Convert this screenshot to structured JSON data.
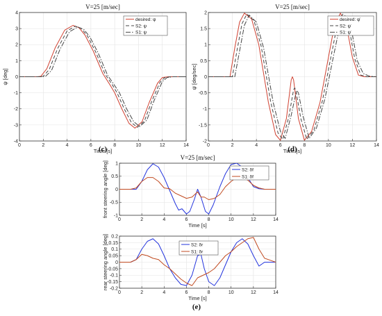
{
  "chart_data": [
    {
      "id": "c",
      "type": "line",
      "title": "V=25 [m/sec]",
      "xlabel": "Time [s]",
      "ylabel": "ψ [deg]",
      "caption": "(c)",
      "xlim": [
        0,
        14
      ],
      "ylim": [
        -4,
        4
      ],
      "xticks": [
        0,
        2,
        4,
        6,
        8,
        10,
        12,
        14
      ],
      "yticks": [
        -4,
        -3,
        -2,
        -1,
        0,
        1,
        2,
        3,
        4
      ],
      "grid": true,
      "legend_position": "top-right",
      "series": [
        {
          "name": "desired: ψ",
          "color": "#d04030",
          "dash": "",
          "x": [
            0,
            1.5,
            1.8,
            2.3,
            3,
            3.8,
            4.5,
            5,
            5.5,
            6.2,
            7,
            7.6,
            8,
            8.6,
            9.2,
            9.7,
            10.3,
            10.9,
            11.6,
            12,
            12.5,
            13,
            14
          ],
          "y": [
            0,
            0,
            0.03,
            0.5,
            1.8,
            2.9,
            3.2,
            3.05,
            2.6,
            1.6,
            0.2,
            -0.5,
            -1.0,
            -2.0,
            -2.9,
            -3.2,
            -2.8,
            -1.6,
            -0.4,
            -0.05,
            0,
            0,
            0
          ]
        },
        {
          "name": "S2: ψ",
          "color": "#444444",
          "dash": "5,3",
          "x": [
            0,
            1.7,
            2,
            2.5,
            3.2,
            4,
            4.7,
            5.2,
            5.7,
            6.4,
            7.2,
            7.8,
            8.2,
            8.8,
            9.4,
            9.9,
            10.5,
            11.1,
            11.8,
            12.2,
            12.7,
            13.2,
            14
          ],
          "y": [
            0,
            0,
            0.03,
            0.45,
            1.75,
            2.85,
            3.15,
            3.0,
            2.55,
            1.55,
            0.15,
            -0.5,
            -1.0,
            -2.0,
            -2.85,
            -3.15,
            -2.75,
            -1.55,
            -0.35,
            -0.05,
            0,
            0,
            0
          ]
        },
        {
          "name": "S1: ψ",
          "color": "#444444",
          "dash": "7,2,1.5,2",
          "x": [
            0,
            1.9,
            2.2,
            2.7,
            3.4,
            4.2,
            4.9,
            5.4,
            5.9,
            6.6,
            7.4,
            8,
            8.4,
            9,
            9.6,
            10.1,
            10.7,
            11.3,
            12,
            12.4,
            12.9,
            13.4,
            14
          ],
          "y": [
            0,
            0,
            0.03,
            0.4,
            1.7,
            2.8,
            3.1,
            2.95,
            2.5,
            1.5,
            0.1,
            -0.55,
            -1.0,
            -2.0,
            -2.8,
            -3.1,
            -2.7,
            -1.5,
            -0.3,
            -0.05,
            0,
            0,
            0
          ]
        }
      ]
    },
    {
      "id": "d",
      "type": "line",
      "title": "V=25 [m/sec]",
      "xlabel": "Time [s]",
      "ylabel": "ψ̇ [deg/sec]",
      "caption": "(d)",
      "xlim": [
        0,
        14
      ],
      "ylim": [
        -2,
        2
      ],
      "xticks": [
        0,
        2,
        4,
        6,
        8,
        10,
        12,
        14
      ],
      "yticks": [
        -2,
        -1.5,
        -1,
        -0.5,
        0,
        0.5,
        1,
        1.5,
        2
      ],
      "grid": true,
      "legend_position": "top-right",
      "series": [
        {
          "name": "desired: ψ̇",
          "color": "#d04030",
          "dash": "",
          "x": [
            0,
            1.8,
            2.2,
            2.6,
            3,
            3.6,
            4.2,
            5,
            5.6,
            6,
            6.5,
            6.9,
            7,
            7.1,
            7.5,
            8,
            8.6,
            9.3,
            10,
            10.5,
            11,
            11.5,
            12,
            12.5,
            13,
            14
          ],
          "y": [
            0,
            0,
            0.9,
            1.7,
            1.98,
            1.8,
            1.0,
            -0.8,
            -1.8,
            -1.98,
            -1.3,
            -0.1,
            0.0,
            -0.1,
            -1.3,
            -1.98,
            -1.7,
            -0.8,
            0.6,
            1.6,
            1.98,
            1.6,
            0.6,
            0.05,
            0,
            0
          ]
        },
        {
          "name": "S2: ψ̇",
          "color": "#444444",
          "dash": "5,3",
          "x": [
            0,
            2,
            2.4,
            2.8,
            3.2,
            3.8,
            4.4,
            5.2,
            5.8,
            6.2,
            6.7,
            7.1,
            7.2,
            7.3,
            7.7,
            8.2,
            8.8,
            9.5,
            10.2,
            10.7,
            11.2,
            11.7,
            12.2,
            12.7,
            13.2,
            14
          ],
          "y": [
            0,
            0,
            0.85,
            1.65,
            1.95,
            1.75,
            0.95,
            -0.8,
            -1.75,
            -1.95,
            -1.25,
            -0.4,
            -0.35,
            -0.45,
            -1.3,
            -1.95,
            -1.65,
            -0.75,
            0.6,
            1.55,
            1.95,
            1.55,
            0.55,
            0.05,
            0,
            0
          ]
        },
        {
          "name": "S1: ψ̇",
          "color": "#444444",
          "dash": "7,2,1.5,2",
          "x": [
            0,
            2.2,
            2.6,
            3,
            3.4,
            4,
            4.6,
            5.4,
            6,
            6.4,
            6.9,
            7.3,
            7.4,
            7.5,
            7.9,
            8.4,
            9,
            9.7,
            10.4,
            10.9,
            11.4,
            11.9,
            12.4,
            12.9,
            13.4,
            14
          ],
          "y": [
            0,
            0,
            0.8,
            1.6,
            1.92,
            1.7,
            0.9,
            -0.8,
            -1.7,
            -1.92,
            -1.2,
            -0.5,
            -0.45,
            -0.5,
            -1.25,
            -1.92,
            -1.6,
            -0.7,
            0.6,
            1.5,
            1.92,
            1.5,
            0.5,
            0.1,
            0.02,
            0
          ]
        }
      ]
    },
    {
      "id": "e-top",
      "type": "line",
      "title": "V=25 [m/sec]",
      "xlabel": "Time [s]",
      "ylabel": "front steering angle [deg]",
      "xlim": [
        0,
        14
      ],
      "ylim": [
        -1,
        1
      ],
      "xticks": [
        0,
        2,
        4,
        6,
        8,
        10,
        12,
        14
      ],
      "yticks": [
        -1,
        -0.5,
        0,
        0.5,
        1
      ],
      "grid": true,
      "legend_position": "top-right",
      "series": [
        {
          "name": "S2: δf",
          "color": "#2233dd",
          "dash": "",
          "x": [
            0,
            1,
            1.5,
            2,
            2.5,
            3,
            3.5,
            4,
            4.5,
            5,
            5.3,
            5.6,
            6,
            6.3,
            6.7,
            7,
            7.3,
            7.7,
            8,
            8.4,
            9,
            9.5,
            10,
            10.5,
            11,
            11.5,
            12,
            12.5,
            13,
            13.5,
            14
          ],
          "y": [
            0,
            0,
            0,
            0.3,
            0.75,
            0.98,
            0.85,
            0.45,
            -0.05,
            -0.55,
            -0.8,
            -0.75,
            -0.95,
            -0.85,
            -0.4,
            0,
            -0.3,
            -0.85,
            -0.95,
            -0.6,
            0.1,
            0.6,
            0.95,
            1.0,
            0.85,
            0.45,
            0.1,
            0.02,
            0,
            0,
            0
          ]
        },
        {
          "name": "S1: δf",
          "color": "#c04a20",
          "dash": "",
          "x": [
            0,
            1,
            1.5,
            2,
            2.5,
            3,
            3.5,
            4,
            4.5,
            5,
            5.5,
            6,
            6.5,
            7,
            7.3,
            7.6,
            8,
            8.5,
            9,
            9.5,
            10,
            10.5,
            11,
            11.5,
            12,
            12.5,
            13,
            14
          ],
          "y": [
            0,
            0,
            0.05,
            0.3,
            0.45,
            0.45,
            0.3,
            0.05,
            0.02,
            -0.15,
            -0.25,
            -0.35,
            -0.3,
            -0.1,
            -0.3,
            -0.3,
            -0.4,
            -0.35,
            -0.2,
            0.1,
            0.3,
            0.45,
            0.45,
            0.35,
            0.15,
            0.05,
            0,
            0
          ]
        }
      ]
    },
    {
      "id": "e-bottom",
      "type": "line",
      "xlabel": "Time [s]",
      "ylabel": "rear steering angle [deg]",
      "caption": "(e)",
      "xlim": [
        0,
        14
      ],
      "ylim": [
        -0.2,
        0.2
      ],
      "xticks": [
        0,
        2,
        4,
        6,
        8,
        10,
        12,
        14
      ],
      "yticks": [
        -0.2,
        -0.15,
        -0.1,
        -0.05,
        0,
        0.05,
        0.1,
        0.15,
        0.2
      ],
      "grid": true,
      "legend_position": "top-center",
      "series": [
        {
          "name": "S2: δr",
          "color": "#2233dd",
          "dash": "",
          "x": [
            0,
            1,
            1.5,
            2,
            2.5,
            3,
            3.5,
            4,
            4.5,
            5,
            5.5,
            6,
            6.5,
            7,
            7.3,
            7.6,
            8,
            8.5,
            9,
            9.5,
            10,
            10.5,
            11,
            11.5,
            12,
            12.5,
            13,
            14
          ],
          "y": [
            0,
            0,
            0.02,
            0.1,
            0.16,
            0.18,
            0.14,
            0.05,
            -0.05,
            -0.12,
            -0.17,
            -0.18,
            -0.1,
            0.05,
            0.06,
            -0.05,
            -0.15,
            -0.18,
            -0.12,
            -0.02,
            0.08,
            0.15,
            0.18,
            0.14,
            0.05,
            -0.03,
            0,
            0
          ]
        },
        {
          "name": "S1: δr",
          "color": "#c04a20",
          "dash": "",
          "x": [
            0,
            1,
            1.5,
            2,
            2.5,
            3,
            3.5,
            4,
            4.5,
            5,
            5.5,
            6,
            6.5,
            7,
            7.5,
            8,
            8.5,
            9,
            9.5,
            10,
            10.5,
            11,
            11.5,
            12,
            12.5,
            13,
            14
          ],
          "y": [
            0,
            0,
            0.02,
            0.06,
            0.05,
            0.03,
            0.02,
            -0.02,
            -0.05,
            -0.09,
            -0.13,
            -0.16,
            -0.18,
            -0.12,
            -0.1,
            -0.08,
            -0.05,
            0.0,
            0.05,
            0.08,
            0.12,
            0.15,
            0.18,
            0.19,
            0.1,
            0.03,
            0
          ]
        }
      ]
    }
  ]
}
